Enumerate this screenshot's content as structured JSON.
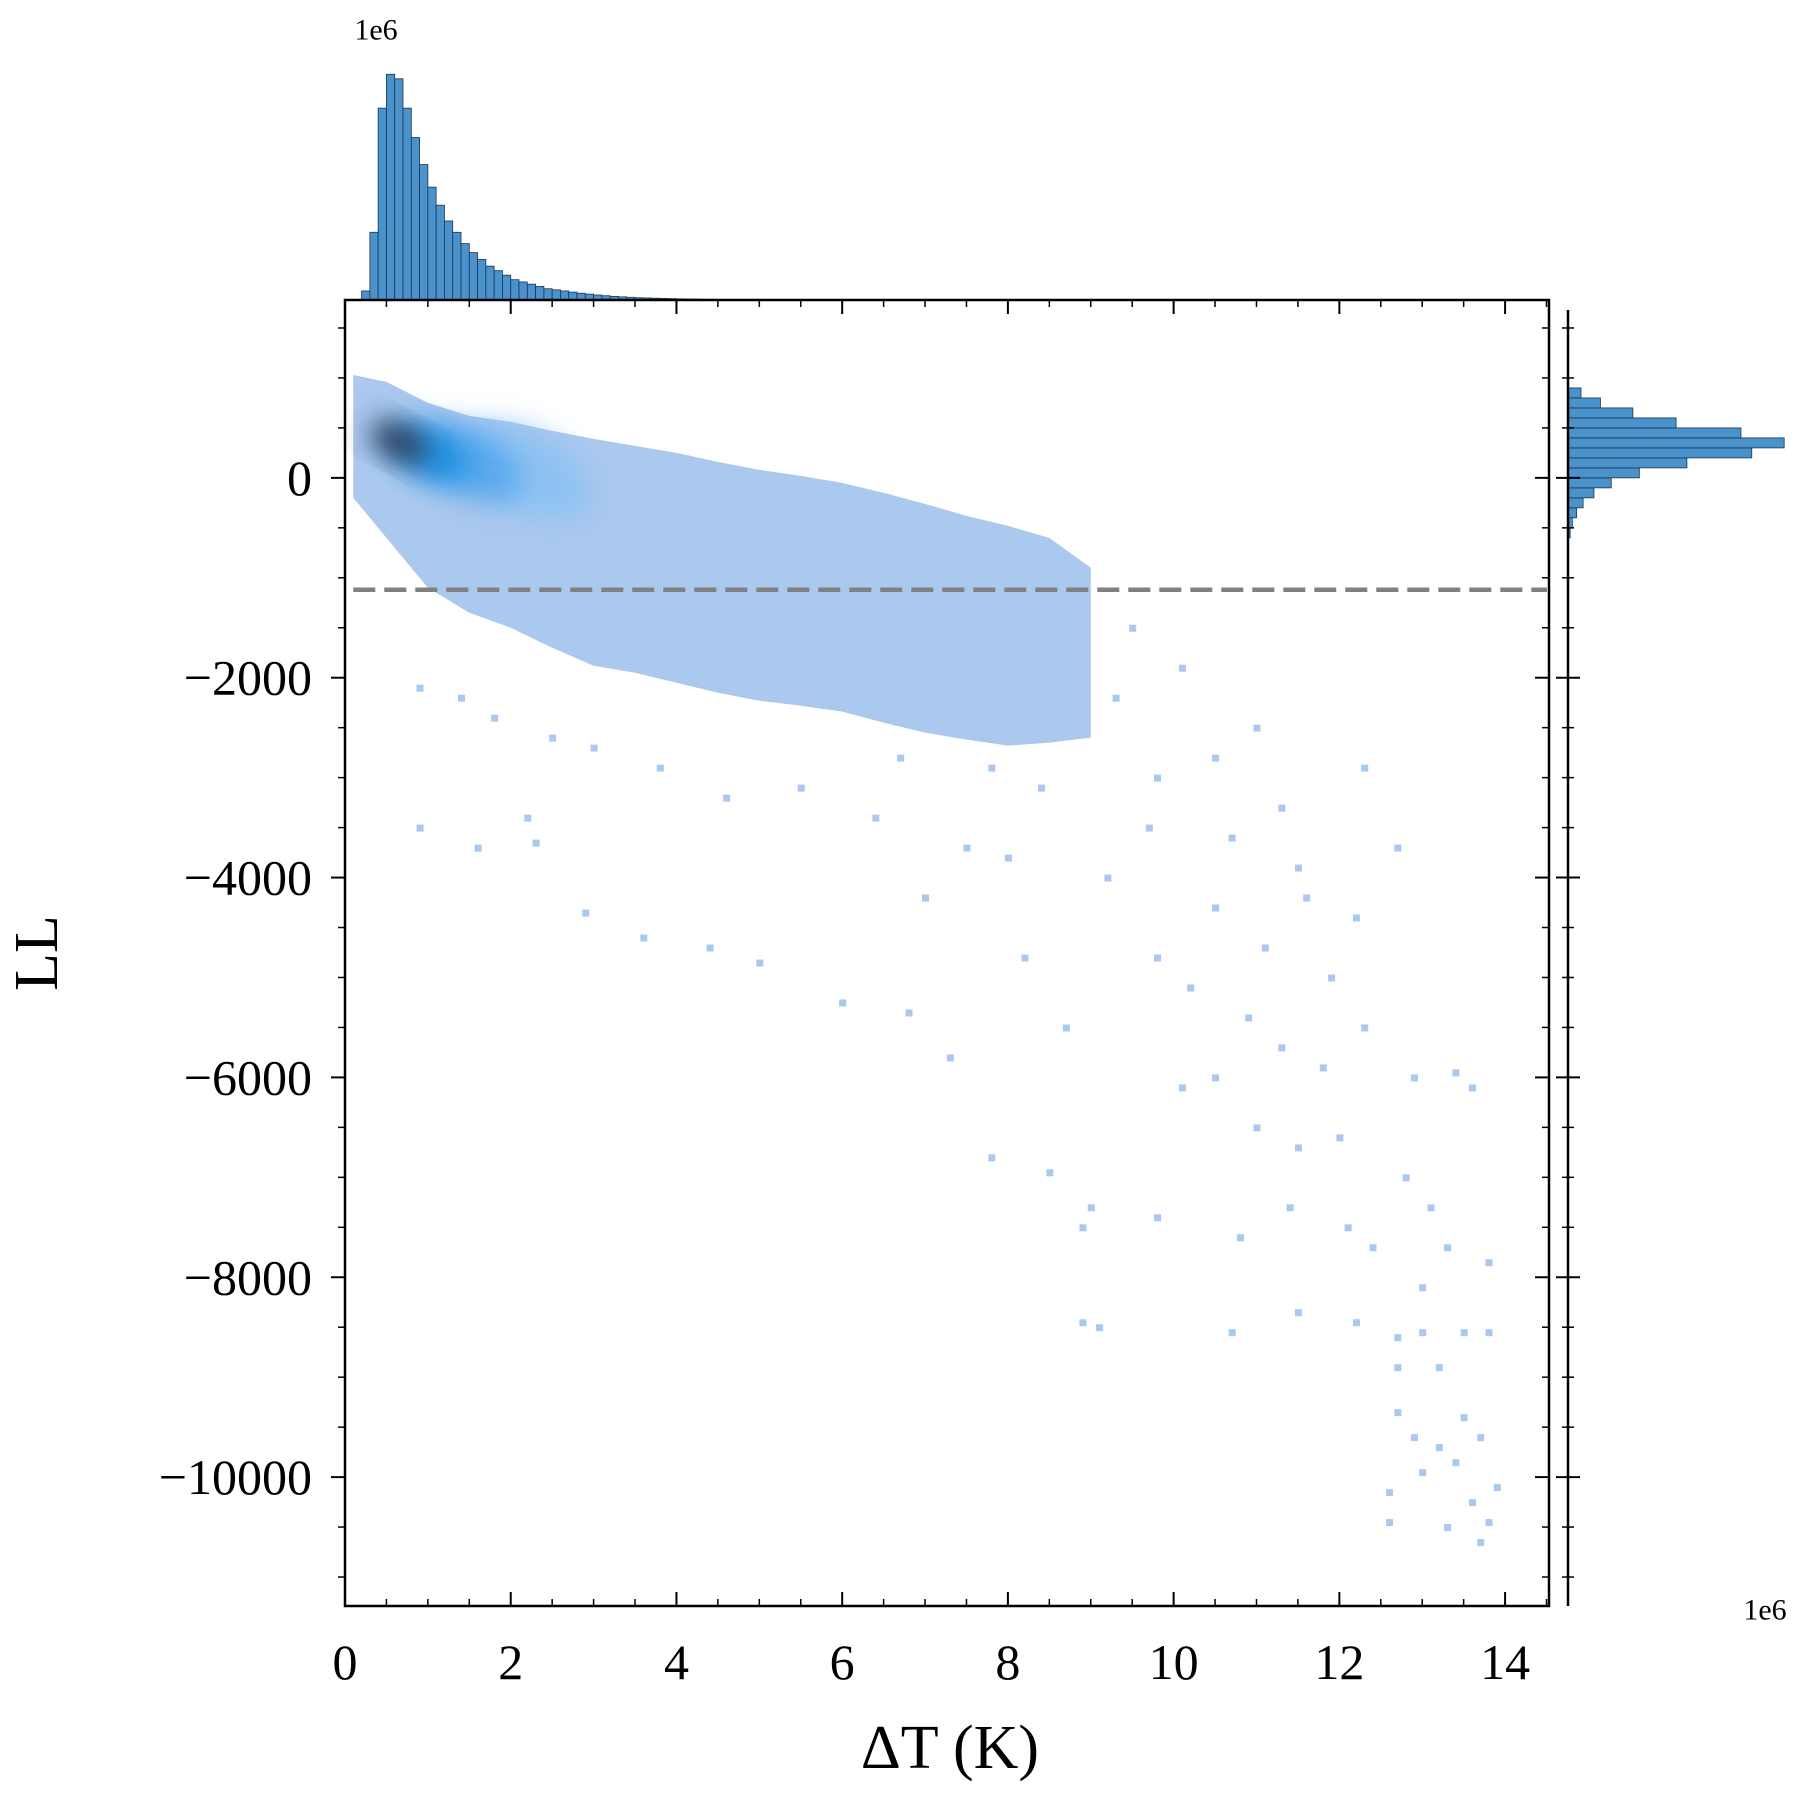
{
  "chart_data": [
    {
      "type": "histogram",
      "orientation": "vertical",
      "offset_label": "1e6",
      "color": "#4a92cc",
      "edgecolor": "#1d3550",
      "bins": [
        0.2,
        0.3,
        0.4,
        0.5,
        0.6,
        0.7,
        0.8,
        0.9,
        1.0,
        1.1,
        1.2,
        1.3,
        1.4,
        1.5,
        1.6,
        1.7,
        1.8,
        1.9,
        2.0,
        2.1,
        2.2,
        2.3,
        2.4,
        2.5,
        2.6,
        2.7,
        2.8,
        2.9,
        3.0,
        3.1,
        3.2,
        3.3,
        3.4,
        3.5,
        3.6,
        3.7,
        3.8,
        3.9,
        4.0,
        4.1,
        4.2,
        4.3,
        4.4,
        4.5,
        4.6,
        4.7
      ],
      "values": [
        0.04,
        0.3,
        0.85,
        1.0,
        0.98,
        0.85,
        0.72,
        0.6,
        0.5,
        0.42,
        0.35,
        0.3,
        0.25,
        0.21,
        0.18,
        0.15,
        0.13,
        0.11,
        0.09,
        0.08,
        0.07,
        0.06,
        0.05,
        0.045,
        0.04,
        0.035,
        0.03,
        0.026,
        0.022,
        0.019,
        0.016,
        0.014,
        0.012,
        0.01,
        0.009,
        0.008,
        0.007,
        0.006,
        0.005,
        0.004,
        0.004,
        0.003,
        0.003,
        0.002,
        0.002
      ],
      "ylim": [
        0,
        1.05
      ]
    },
    {
      "type": "histogram",
      "orientation": "horizontal",
      "offset_label": "1e6",
      "color": "#4a92cc",
      "edgecolor": "#1d3550",
      "bins": [
        -600,
        -500,
        -400,
        -300,
        -200,
        -100,
        0,
        100,
        200,
        300,
        400,
        500,
        600,
        700,
        800,
        900
      ],
      "values": [
        0.01,
        0.02,
        0.04,
        0.07,
        0.12,
        0.2,
        0.33,
        0.55,
        0.85,
        1.0,
        0.8,
        0.5,
        0.3,
        0.15,
        0.06
      ],
      "xlim": [
        0,
        1.05
      ]
    },
    {
      "type": "hist2d",
      "xlabel": "ΔT (K)",
      "ylabel": "LL",
      "color": "#abc8ee",
      "xlim": [
        0,
        14.53
      ],
      "ylim": [
        -11290,
        1780
      ],
      "xticks": [
        0,
        2,
        4,
        6,
        8,
        10,
        12,
        14
      ],
      "yticks": [
        0,
        {
          "value": -2000,
          "label": "−2000"
        },
        {
          "value": -4000,
          "label": "−4000"
        },
        {
          "value": -6000,
          "label": "−6000"
        },
        {
          "value": -8000,
          "label": "−8000"
        },
        {
          "value": -10000,
          "label": "−10000"
        }
      ],
      "xminorticks": [
        0.5,
        1,
        1.5,
        2.5,
        3,
        3.5,
        4.5,
        5,
        5.5,
        6.5,
        7,
        7.5,
        8.5,
        9,
        9.5,
        10.5,
        11,
        11.5,
        12.5,
        13,
        13.5,
        14.5
      ],
      "yminorticks": [
        1500,
        1000,
        500,
        -500,
        -1000,
        -1500,
        -2500,
        -3000,
        -3500,
        -4500,
        -5000,
        -5500,
        -6500,
        -7000,
        -7500,
        -8500,
        -9000,
        -9500,
        -10500,
        -11000
      ],
      "band": {
        "x": [
          0.1,
          0.5,
          1,
          1.5,
          2,
          2.5,
          3,
          3.5,
          4,
          4.5,
          5,
          5.5,
          6,
          6.5,
          7,
          7.5,
          8,
          8.5,
          9
        ],
        "upper": [
          1030,
          960,
          750,
          620,
          560,
          470,
          390,
          320,
          250,
          160,
          80,
          20,
          -50,
          -150,
          -260,
          -380,
          -480,
          -600,
          -900
        ],
        "lower": [
          -200,
          -600,
          -1100,
          -1350,
          -1500,
          -1700,
          -1880,
          -1950,
          -2050,
          -2150,
          -2230,
          -2280,
          -2340,
          -2450,
          -2550,
          -2620,
          -2680,
          -2650,
          -2600
        ]
      },
      "peaks": {
        "x": [
          2.2,
          1.5,
          1.0,
          0.65
        ],
        "y": [
          50,
          150,
          250,
          360
        ],
        "colors": [
          "#8ec2f2",
          "#5aa9ee",
          "#1f8fe0",
          "#2e3b55"
        ]
      },
      "points": {
        "x": [
          0.9,
          1.6,
          2.2,
          2.3,
          2.9,
          3.6,
          4.4,
          5.0,
          6.0,
          6.8,
          7.3,
          7.8,
          8.5,
          9.0,
          8.9,
          9.8,
          10.8,
          11.4,
          12.1,
          12.4,
          8.9,
          9.1,
          10.7,
          11.5,
          12.2,
          12.7,
          13.0,
          13.5,
          13.8,
          12.7,
          12.9,
          13.2,
          13.5,
          13.7,
          13.4,
          13.0,
          12.6,
          13.6,
          13.9,
          13.8,
          12.6,
          13.3,
          13.7,
          12.9,
          13.4,
          13.6,
          12.8,
          13.1,
          13.3,
          13.8,
          13.0,
          13.2,
          12.7,
          10.1,
          10.5,
          11.0,
          11.5,
          12.0,
          12.3,
          11.9,
          11.1,
          10.5,
          9.7,
          9.2,
          8.0,
          7.5,
          7.0,
          6.4,
          5.5,
          4.6,
          3.8,
          3.0,
          2.5,
          1.8,
          1.4,
          0.9,
          11.3,
          12.3,
          12.7,
          11.6,
          12.2,
          10.2,
          10.9,
          11.3,
          11.8,
          8.7,
          8.2,
          9.8,
          10.5,
          11.0,
          10.1,
          9.5,
          8.7,
          9.3,
          8.4,
          7.8,
          6.7,
          9.8,
          10.7,
          11.5
        ],
        "y": [
          -3500,
          -3700,
          -3400,
          -3650,
          -4350,
          -4600,
          -4700,
          -4850,
          -5250,
          -5350,
          -5800,
          -6800,
          -6950,
          -7300,
          -7500,
          -7400,
          -7600,
          -7300,
          -7500,
          -7700,
          -8450,
          -8500,
          -8550,
          -8350,
          -8450,
          -8600,
          -8550,
          -8550,
          -8550,
          -9350,
          -9600,
          -9700,
          -9400,
          -9600,
          -9850,
          -9950,
          -10150,
          -10250,
          -10100,
          -10450,
          -10450,
          -10500,
          -10650,
          -6000,
          -5950,
          -6100,
          -7000,
          -7300,
          -7700,
          -7850,
          -8100,
          -8900,
          -8900,
          -6100,
          -6000,
          -6500,
          -6700,
          -6600,
          -5500,
          -5000,
          -4700,
          -4300,
          -3500,
          -4000,
          -3800,
          -3700,
          -4200,
          -3400,
          -3100,
          -3200,
          -2900,
          -2700,
          -2600,
          -2400,
          -2200,
          -2100,
          -3300,
          -2900,
          -3700,
          -4200,
          -4400,
          -5100,
          -5400,
          -5700,
          -5900,
          -5500,
          -4800,
          -4800,
          -2800,
          -2500,
          -1900,
          -1500,
          -1300,
          -2200,
          -3100,
          -2900,
          -2800,
          -3000,
          -3600,
          -3900
        ]
      },
      "hline": {
        "value": -1120,
        "color": "#808080",
        "linestyle": "dashed"
      }
    }
  ]
}
